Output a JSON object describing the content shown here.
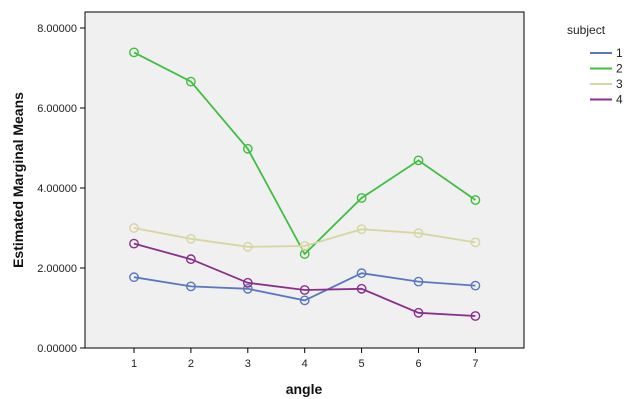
{
  "chart_data": {
    "type": "line",
    "title": "",
    "xlabel": "angle",
    "ylabel": "Estimated Marginal Means",
    "x": [
      "1",
      "2",
      "3",
      "4",
      "5",
      "6",
      "7"
    ],
    "ylim": [
      0,
      8.4
    ],
    "yticks": [
      "0.00000",
      "2.00000",
      "4.00000",
      "6.00000",
      "8.00000"
    ],
    "ytick_values": [
      0,
      2,
      4,
      6,
      8
    ],
    "legend_title": "subject",
    "legend_position": "top-right, outside plot",
    "grid": false,
    "background": "#f0f0f0",
    "series": [
      {
        "name": "1",
        "color": "#5a78c0",
        "values": [
          1.77,
          1.54,
          1.48,
          1.19,
          1.87,
          1.66,
          1.56
        ]
      },
      {
        "name": "2",
        "color": "#3fbf3f",
        "values": [
          7.39,
          6.66,
          4.98,
          2.35,
          3.75,
          4.69,
          3.7
        ]
      },
      {
        "name": "3",
        "color": "#d6d6a0",
        "values": [
          3.0,
          2.73,
          2.53,
          2.55,
          2.97,
          2.87,
          2.64
        ]
      },
      {
        "name": "4",
        "color": "#8a2f8a",
        "values": [
          2.61,
          2.22,
          1.63,
          1.45,
          1.48,
          0.88,
          0.8
        ]
      }
    ]
  }
}
